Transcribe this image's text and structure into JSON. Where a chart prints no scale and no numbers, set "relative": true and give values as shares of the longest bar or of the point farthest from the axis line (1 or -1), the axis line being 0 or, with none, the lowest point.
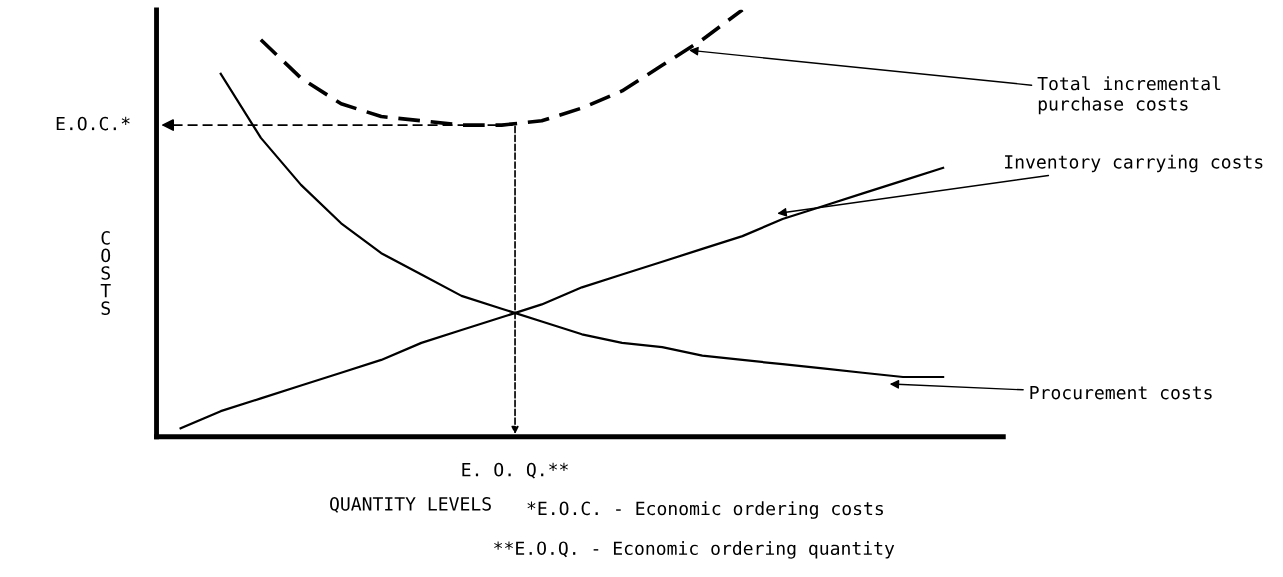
{
  "chart_data": {
    "type": "line",
    "relative": true,
    "xlabel": "QUANTITY LEVELS",
    "ylabel": "COSTS",
    "categories": [
      null,
      null,
      null,
      null,
      null,
      null,
      null,
      null,
      null,
      null,
      null,
      null,
      null,
      null,
      null,
      null,
      null,
      null,
      null,
      null,
      null
    ],
    "series": [
      {
        "name": "Total incremental purchase costs",
        "color": "#000000",
        "line_style": "dashed",
        "values": [
          null,
          null,
          0.93,
          0.84,
          0.78,
          0.75,
          0.74,
          0.73,
          0.73,
          0.74,
          0.77,
          0.81,
          0.87,
          0.93,
          1.0,
          null,
          null,
          null,
          null,
          null,
          null
        ]
      },
      {
        "name": "Inventory carrying costs",
        "color": "#000000",
        "line_style": "solid",
        "values": [
          0.02,
          0.06,
          0.09,
          0.12,
          0.15,
          0.18,
          0.22,
          0.25,
          0.28,
          0.31,
          0.35,
          0.38,
          0.41,
          0.44,
          0.47,
          0.51,
          0.54,
          0.57,
          0.6,
          0.63,
          null
        ]
      },
      {
        "name": "Procurement costs",
        "color": "#000000",
        "line_style": "solid",
        "values": [
          null,
          0.85,
          0.7,
          0.59,
          0.5,
          0.43,
          0.38,
          0.33,
          0.3,
          0.27,
          0.24,
          0.22,
          0.21,
          0.19,
          0.18,
          0.17,
          0.16,
          0.15,
          0.14,
          0.14,
          null
        ]
      }
    ],
    "ref_lines": [
      {
        "axis": "y",
        "value": 0.73,
        "label": "E.O.C.*",
        "line_style": "dashed"
      }
    ],
    "annotations": [
      "E. O. Q.**",
      "*E.O.C. - Economic ordering costs",
      "**E.O.Q. - Economic ordering quantity"
    ],
    "grid": false,
    "legend": false,
    "marker": "none"
  }
}
